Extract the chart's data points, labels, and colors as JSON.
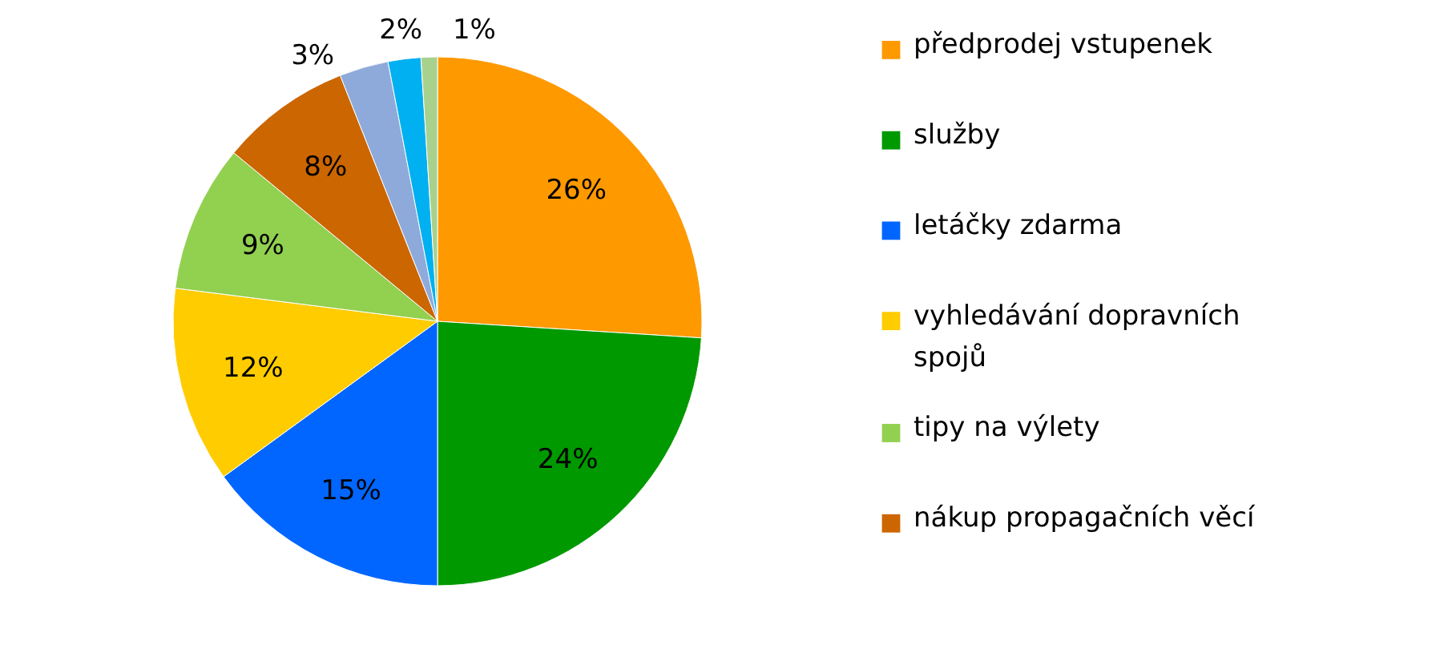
{
  "chart_data": {
    "type": "pie",
    "categories": [
      "předprodej vstupenek",
      "služby",
      "letáčky zdarma",
      "vyhledávání dopravních spojů",
      "tipy na výlety",
      "nákup propagačních věcí",
      null,
      null,
      null
    ],
    "values": [
      26,
      24,
      15,
      12,
      9,
      8,
      3,
      2,
      1
    ],
    "value_labels": [
      "26%",
      "24%",
      "15%",
      "12%",
      "9%",
      "8%",
      "3%",
      "2%",
      "1%"
    ],
    "colors": [
      "#ff9900",
      "#009900",
      "#0066ff",
      "#ffcc00",
      "#92d050",
      "#cc6600",
      "#8eaadb",
      "#00b0f0",
      "#a9d18e"
    ],
    "legend": "right"
  }
}
